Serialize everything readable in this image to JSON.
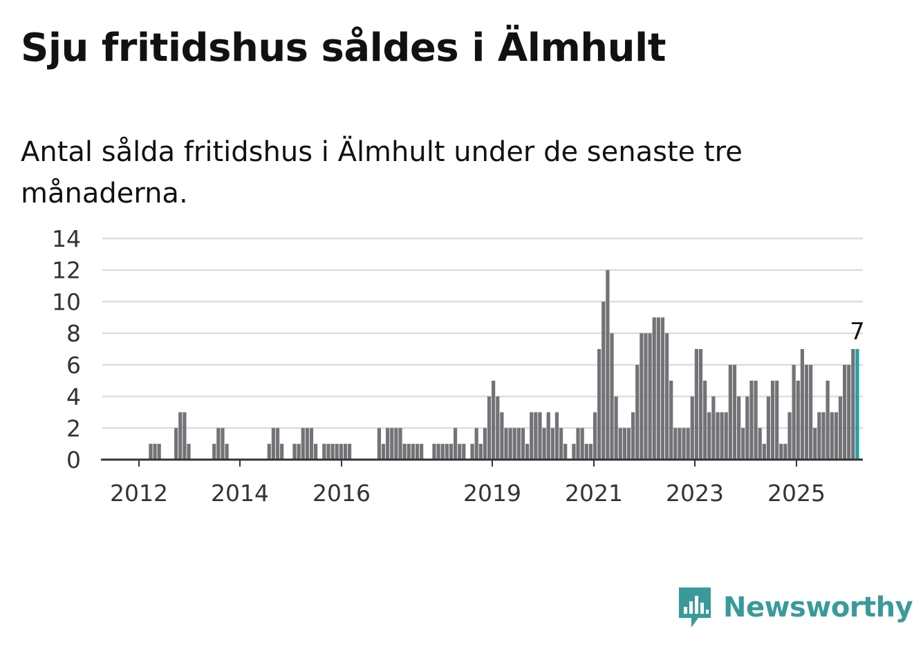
{
  "title": "Sju fritidshus såldes i Älmhult",
  "subtitle": "Antal sålda fritidshus i Älmhult under de senaste tre månaderna.",
  "brand": {
    "name": "Newsworthy",
    "color": "#3a9a9a"
  },
  "colors": {
    "bar": "#737276",
    "highlight": "#22a39f",
    "grid": "#dddddd",
    "axis": "#333333"
  },
  "chart_data": {
    "type": "bar",
    "period_labels": [
      "2012",
      "2014",
      "2016",
      "2019",
      "2021",
      "2023",
      "2025"
    ],
    "values": [
      0,
      0,
      0,
      0,
      0,
      0,
      0,
      0,
      0,
      0,
      0,
      1,
      1,
      1,
      0,
      0,
      0,
      2,
      3,
      3,
      1,
      0,
      0,
      0,
      0,
      0,
      1,
      2,
      2,
      1,
      0,
      0,
      0,
      0,
      0,
      0,
      0,
      0,
      0,
      1,
      2,
      2,
      1,
      0,
      0,
      1,
      1,
      2,
      2,
      2,
      1,
      0,
      1,
      1,
      1,
      1,
      1,
      1,
      1,
      0,
      0,
      0,
      0,
      0,
      0,
      2,
      1,
      2,
      2,
      2,
      2,
      1,
      1,
      1,
      1,
      1,
      0,
      0,
      1,
      1,
      1,
      1,
      1,
      2,
      1,
      1,
      0,
      1,
      2,
      1,
      2,
      4,
      5,
      4,
      3,
      2,
      2,
      2,
      2,
      2,
      1,
      3,
      3,
      3,
      2,
      3,
      2,
      3,
      2,
      1,
      0,
      1,
      2,
      2,
      1,
      1,
      3,
      7,
      10,
      12,
      8,
      4,
      2,
      2,
      2,
      3,
      6,
      8,
      8,
      8,
      9,
      9,
      9,
      8,
      5,
      2,
      2,
      2,
      2,
      4,
      7,
      7,
      5,
      3,
      4,
      3,
      3,
      3,
      6,
      6,
      4,
      2,
      4,
      5,
      5,
      2,
      1,
      4,
      5,
      5,
      1,
      1,
      3,
      6,
      5,
      7,
      6,
      6,
      2,
      3,
      3,
      5,
      3,
      3,
      4,
      6,
      6,
      7,
      7
    ],
    "highlight_last": true,
    "data_label": "7",
    "yticks": [
      0,
      2,
      4,
      6,
      8,
      10,
      12,
      14
    ],
    "ylim": [
      0,
      14
    ],
    "grid": true
  }
}
